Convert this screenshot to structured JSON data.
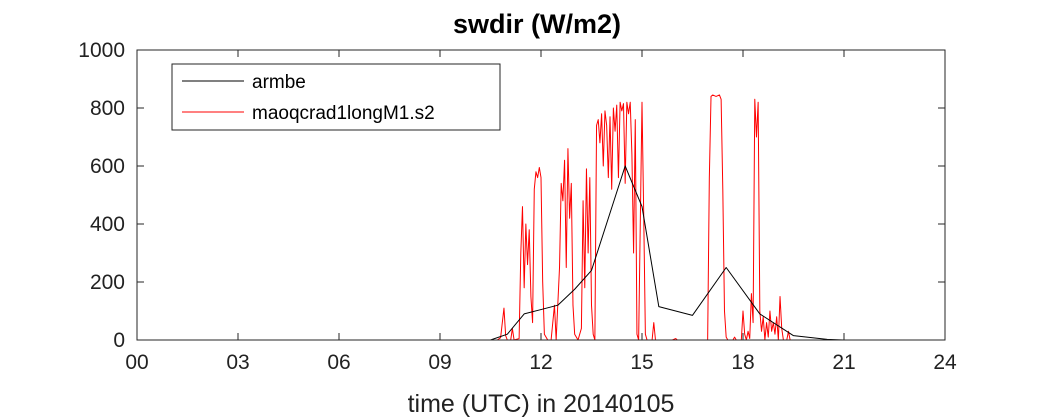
{
  "chart_data": {
    "type": "line",
    "title": "swdir  (W/m2)",
    "xlabel": "time (UTC) in 20140105",
    "ylabel": "",
    "xlim": [
      0,
      24
    ],
    "ylim": [
      0,
      1000
    ],
    "x_ticks": [
      0,
      3,
      6,
      9,
      12,
      15,
      18,
      21,
      24
    ],
    "x_tick_labels": [
      "00",
      "03",
      "06",
      "09",
      "12",
      "15",
      "18",
      "21",
      "24"
    ],
    "y_ticks": [
      0,
      200,
      400,
      600,
      800,
      1000
    ],
    "y_tick_labels": [
      "0",
      "200",
      "400",
      "600",
      "800",
      "1000"
    ],
    "grid": false,
    "legend_position": "top-left",
    "series": [
      {
        "name": "armbe",
        "color": "#000000",
        "points": [
          [
            0,
            0
          ],
          [
            10.5,
            0
          ],
          [
            11.0,
            20
          ],
          [
            11.5,
            90
          ],
          [
            12.0,
            105
          ],
          [
            12.5,
            120
          ],
          [
            13.0,
            175
          ],
          [
            13.5,
            240
          ],
          [
            14.5,
            600
          ],
          [
            15.0,
            460
          ],
          [
            15.5,
            115
          ],
          [
            16.5,
            85
          ],
          [
            17.5,
            250
          ],
          [
            18.5,
            90
          ],
          [
            19.5,
            15
          ],
          [
            20.5,
            2
          ],
          [
            21.0,
            0
          ],
          [
            24,
            0
          ]
        ]
      },
      {
        "name": "maoqcrad1longM1.s2",
        "color": "#ff0000",
        "points": [
          [
            0,
            0
          ],
          [
            10.7,
            0
          ],
          [
            10.8,
            8
          ],
          [
            10.9,
            110
          ],
          [
            10.95,
            15
          ],
          [
            11.0,
            0
          ],
          [
            11.1,
            0
          ],
          [
            11.15,
            40
          ],
          [
            11.2,
            0
          ],
          [
            11.35,
            5
          ],
          [
            11.4,
            300
          ],
          [
            11.45,
            460
          ],
          [
            11.5,
            180
          ],
          [
            11.55,
            400
          ],
          [
            11.6,
            260
          ],
          [
            11.65,
            380
          ],
          [
            11.7,
            150
          ],
          [
            11.75,
            60
          ],
          [
            11.8,
            520
          ],
          [
            11.85,
            580
          ],
          [
            11.9,
            560
          ],
          [
            11.95,
            595
          ],
          [
            12.0,
            560
          ],
          [
            12.05,
            200
          ],
          [
            12.1,
            20
          ],
          [
            12.2,
            0
          ],
          [
            12.3,
            0
          ],
          [
            12.4,
            120
          ],
          [
            12.45,
            0
          ],
          [
            12.55,
            250
          ],
          [
            12.6,
            540
          ],
          [
            12.65,
            480
          ],
          [
            12.7,
            620
          ],
          [
            12.75,
            250
          ],
          [
            12.8,
            660
          ],
          [
            12.85,
            420
          ],
          [
            12.9,
            540
          ],
          [
            12.95,
            120
          ],
          [
            13.0,
            20
          ],
          [
            13.1,
            0
          ],
          [
            13.2,
            40
          ],
          [
            13.25,
            480
          ],
          [
            13.3,
            180
          ],
          [
            13.35,
            590
          ],
          [
            13.4,
            300
          ],
          [
            13.45,
            560
          ],
          [
            13.5,
            120
          ],
          [
            13.55,
            20
          ],
          [
            13.6,
            0
          ],
          [
            13.65,
            740
          ],
          [
            13.7,
            760
          ],
          [
            13.75,
            680
          ],
          [
            13.8,
            780
          ],
          [
            13.85,
            600
          ],
          [
            13.9,
            790
          ],
          [
            13.95,
            740
          ],
          [
            14.0,
            560
          ],
          [
            14.05,
            770
          ],
          [
            14.1,
            520
          ],
          [
            14.15,
            800
          ],
          [
            14.2,
            720
          ],
          [
            14.25,
            810
          ],
          [
            14.3,
            560
          ],
          [
            14.35,
            820
          ],
          [
            14.4,
            790
          ],
          [
            14.45,
            815
          ],
          [
            14.5,
            540
          ],
          [
            14.55,
            820
          ],
          [
            14.6,
            780
          ],
          [
            14.65,
            820
          ],
          [
            14.7,
            640
          ],
          [
            14.75,
            300
          ],
          [
            14.8,
            760
          ],
          [
            14.85,
            20
          ],
          [
            14.9,
            0
          ],
          [
            15.0,
            820
          ],
          [
            15.05,
            440
          ],
          [
            15.1,
            20
          ],
          [
            15.15,
            0
          ],
          [
            15.3,
            0
          ],
          [
            15.35,
            60
          ],
          [
            15.4,
            0
          ],
          [
            15.9,
            0
          ],
          [
            16.0,
            5
          ],
          [
            16.05,
            0
          ],
          [
            16.95,
            0
          ],
          [
            17.0,
            560
          ],
          [
            17.05,
            840
          ],
          [
            17.1,
            845
          ],
          [
            17.2,
            840
          ],
          [
            17.3,
            845
          ],
          [
            17.35,
            830
          ],
          [
            17.4,
            520
          ],
          [
            17.45,
            100
          ],
          [
            17.5,
            10
          ],
          [
            17.55,
            0
          ],
          [
            17.7,
            0
          ],
          [
            17.75,
            10
          ],
          [
            17.8,
            0
          ],
          [
            17.95,
            0
          ],
          [
            18.0,
            100
          ],
          [
            18.05,
            20
          ],
          [
            18.1,
            0
          ],
          [
            18.15,
            30
          ],
          [
            18.2,
            5
          ],
          [
            18.25,
            160
          ],
          [
            18.3,
            60
          ],
          [
            18.35,
            830
          ],
          [
            18.4,
            700
          ],
          [
            18.45,
            820
          ],
          [
            18.5,
            100
          ],
          [
            18.55,
            30
          ],
          [
            18.6,
            80
          ],
          [
            18.65,
            0
          ],
          [
            18.7,
            60
          ],
          [
            18.75,
            10
          ],
          [
            18.8,
            100
          ],
          [
            18.85,
            30
          ],
          [
            18.9,
            60
          ],
          [
            18.95,
            20
          ],
          [
            19.0,
            80
          ],
          [
            19.05,
            0
          ],
          [
            19.1,
            150
          ],
          [
            19.15,
            40
          ],
          [
            19.2,
            0
          ],
          [
            19.3,
            0
          ],
          [
            19.35,
            30
          ],
          [
            19.4,
            0
          ],
          [
            24,
            0
          ]
        ]
      }
    ]
  }
}
